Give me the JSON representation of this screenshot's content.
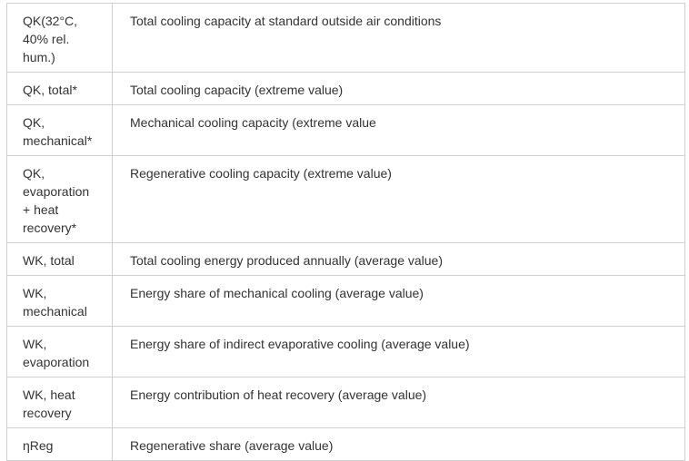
{
  "rows": [
    {
      "term_lines": [
        "QK(32°C,",
        "40% rel.",
        "hum.)"
      ],
      "description": "Total cooling capacity at standard outside air conditions"
    },
    {
      "term_lines": [
        "QK, total*"
      ],
      "description": "Total cooling capacity (extreme value)"
    },
    {
      "term_lines": [
        "QK,",
        "mechanical*"
      ],
      "description": "Mechanical cooling capacity (extreme value"
    },
    {
      "term_lines": [
        "QK,",
        "evaporation",
        "+ heat",
        "recovery*"
      ],
      "description": "Regenerative cooling capacity (extreme value)"
    },
    {
      "term_lines": [
        "WK, total"
      ],
      "description": "Total cooling energy produced annually (average value)"
    },
    {
      "term_lines": [
        "WK,",
        "mechanical"
      ],
      "description": "Energy share of mechanical cooling (average value)"
    },
    {
      "term_lines": [
        "WK,",
        "evaporation"
      ],
      "description": "Energy share of indirect evaporative cooling (average value)"
    },
    {
      "term_lines": [
        "WK, heat",
        "recovery"
      ],
      "description": "Energy contribution of heat recovery (average value)"
    },
    {
      "term_lines": [
        "ηReg"
      ],
      "description": "Regenerative share (average value)"
    }
  ]
}
